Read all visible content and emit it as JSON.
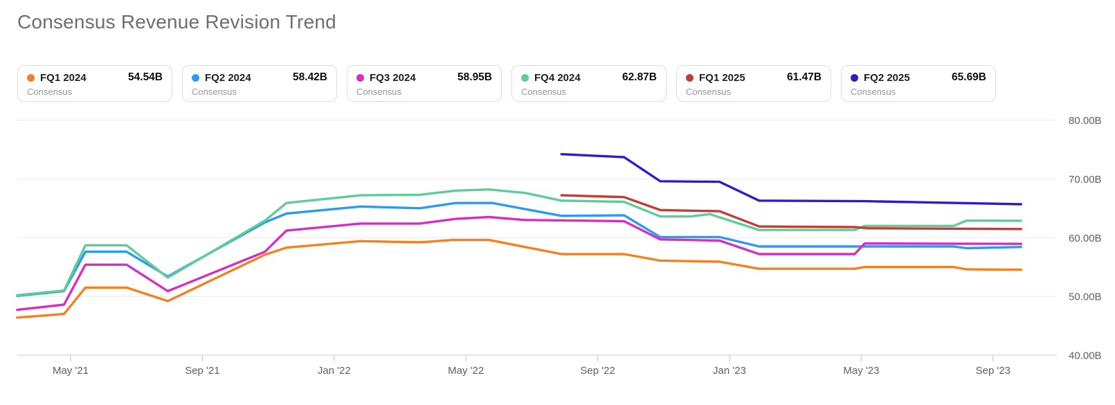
{
  "page": {
    "title": "Consensus Revenue Revision Trend"
  },
  "legend": {
    "cards": [
      {
        "label": "FQ1 2024",
        "sublabel": "Consensus",
        "value": "54.54B",
        "color": "#f5801f"
      },
      {
        "label": "FQ2 2024",
        "sublabel": "Consensus",
        "value": "58.42B",
        "color": "#2b9af3"
      },
      {
        "label": "FQ3 2024",
        "sublabel": "Consensus",
        "value": "58.95B",
        "color": "#d62ec1"
      },
      {
        "label": "FQ4 2024",
        "sublabel": "Consensus",
        "value": "62.87B",
        "color": "#5ecd9a"
      },
      {
        "label": "FQ1 2025",
        "sublabel": "Consensus",
        "value": "61.47B",
        "color": "#c43c32"
      },
      {
        "label": "FQ2 2025",
        "sublabel": "Consensus",
        "value": "65.69B",
        "color": "#3717cb"
      }
    ]
  },
  "chart_data": {
    "type": "line",
    "title": "Consensus Revenue Revision Trend",
    "xlabel": "",
    "ylabel": "",
    "x_unit": "months since Mar 2021",
    "x_axis": {
      "ticks": [
        {
          "pos": 2,
          "label": "May '21"
        },
        {
          "pos": 6,
          "label": "Sep '21"
        },
        {
          "pos": 10,
          "label": "Jan '22"
        },
        {
          "pos": 14,
          "label": "May '22"
        },
        {
          "pos": 18,
          "label": "Sep '22"
        },
        {
          "pos": 22,
          "label": "Jan '23"
        },
        {
          "pos": 26,
          "label": "May '23"
        },
        {
          "pos": 30,
          "label": "Sep '23"
        }
      ]
    },
    "y_axis": {
      "min": 40,
      "max": 80,
      "ticks": [
        {
          "value": 80,
          "label": "80.00B"
        },
        {
          "value": 70,
          "label": "70.00B"
        },
        {
          "value": 60,
          "label": "60.00B"
        },
        {
          "value": 50,
          "label": "50.00B"
        },
        {
          "value": 40,
          "label": "40.00B"
        }
      ]
    },
    "grid": "horizontal",
    "legend_position": "top",
    "series": [
      {
        "name": "FQ1 2024 Consensus",
        "current_value": "54.54B",
        "color": "#f5801f",
        "points": [
          [
            0.38,
            46.4
          ],
          [
            1.8,
            47.0
          ],
          [
            2.45,
            51.5
          ],
          [
            3.7,
            51.5
          ],
          [
            4.95,
            49.2
          ],
          [
            7.9,
            57.1
          ],
          [
            8.55,
            58.3
          ],
          [
            10.8,
            59.4
          ],
          [
            12.6,
            59.2
          ],
          [
            13.6,
            59.6
          ],
          [
            14.7,
            59.6
          ],
          [
            16.9,
            57.2
          ],
          [
            18.8,
            57.2
          ],
          [
            19.9,
            56.1
          ],
          [
            21.7,
            55.9
          ],
          [
            22.9,
            54.7
          ],
          [
            25.8,
            54.7
          ],
          [
            26.1,
            55.0
          ],
          [
            28.8,
            55.0
          ],
          [
            29.2,
            54.6
          ],
          [
            30.85,
            54.54
          ]
        ]
      },
      {
        "name": "FQ2 2024 Consensus",
        "current_value": "58.42B",
        "color": "#2b9af3",
        "points": [
          [
            0.38,
            50.1
          ],
          [
            1.8,
            50.9
          ],
          [
            2.45,
            57.6
          ],
          [
            3.7,
            57.6
          ],
          [
            4.95,
            53.4
          ],
          [
            7.9,
            62.6
          ],
          [
            8.55,
            64.1
          ],
          [
            10.8,
            65.3
          ],
          [
            12.6,
            65.0
          ],
          [
            13.7,
            65.9
          ],
          [
            14.8,
            65.9
          ],
          [
            16.9,
            63.7
          ],
          [
            18.8,
            63.8
          ],
          [
            19.9,
            60.1
          ],
          [
            21.7,
            60.1
          ],
          [
            22.9,
            58.5
          ],
          [
            28.8,
            58.5
          ],
          [
            29.2,
            58.2
          ],
          [
            30.85,
            58.42
          ]
        ]
      },
      {
        "name": "FQ3 2024 Consensus",
        "current_value": "58.95B",
        "color": "#d62ec1",
        "points": [
          [
            0.38,
            47.7
          ],
          [
            1.8,
            48.6
          ],
          [
            2.45,
            55.4
          ],
          [
            3.7,
            55.4
          ],
          [
            4.95,
            50.9
          ],
          [
            7.9,
            57.6
          ],
          [
            8.55,
            61.2
          ],
          [
            10.8,
            62.4
          ],
          [
            12.6,
            62.4
          ],
          [
            13.7,
            63.2
          ],
          [
            14.7,
            63.5
          ],
          [
            15.8,
            63.0
          ],
          [
            18.8,
            62.8
          ],
          [
            19.9,
            59.7
          ],
          [
            21.7,
            59.5
          ],
          [
            22.9,
            57.2
          ],
          [
            25.8,
            57.2
          ],
          [
            26.1,
            59.0
          ],
          [
            30.85,
            58.95
          ]
        ]
      },
      {
        "name": "FQ4 2024 Consensus",
        "current_value": "62.87B",
        "color": "#5ecd9a",
        "points": [
          [
            0.38,
            50.2
          ],
          [
            1.8,
            51.0
          ],
          [
            2.45,
            58.7
          ],
          [
            3.7,
            58.7
          ],
          [
            4.95,
            53.2
          ],
          [
            7.9,
            62.9
          ],
          [
            8.55,
            65.9
          ],
          [
            10.8,
            67.2
          ],
          [
            12.6,
            67.3
          ],
          [
            13.7,
            68.0
          ],
          [
            14.7,
            68.2
          ],
          [
            15.8,
            67.6
          ],
          [
            16.9,
            66.3
          ],
          [
            18.8,
            66.1
          ],
          [
            19.9,
            63.6
          ],
          [
            20.8,
            63.6
          ],
          [
            21.4,
            64.0
          ],
          [
            22.9,
            61.3
          ],
          [
            25.8,
            61.3
          ],
          [
            26.1,
            62.0
          ],
          [
            28.8,
            62.0
          ],
          [
            29.2,
            62.9
          ],
          [
            30.85,
            62.87
          ]
        ]
      },
      {
        "name": "FQ1 2025 Consensus",
        "current_value": "61.47B",
        "color": "#c43c32",
        "points": [
          [
            16.9,
            67.2
          ],
          [
            18.8,
            66.9
          ],
          [
            19.9,
            64.7
          ],
          [
            21.7,
            64.5
          ],
          [
            22.9,
            61.9
          ],
          [
            25.8,
            61.8
          ],
          [
            26.2,
            61.6
          ],
          [
            30.85,
            61.47
          ]
        ]
      },
      {
        "name": "FQ2 2025 Consensus",
        "current_value": "65.69B",
        "color": "#3717cb",
        "points": [
          [
            16.9,
            74.2
          ],
          [
            18.8,
            73.7
          ],
          [
            19.9,
            69.6
          ],
          [
            21.7,
            69.5
          ],
          [
            22.9,
            66.3
          ],
          [
            26.1,
            66.2
          ],
          [
            28.9,
            65.9
          ],
          [
            30.85,
            65.69
          ]
        ]
      }
    ]
  }
}
